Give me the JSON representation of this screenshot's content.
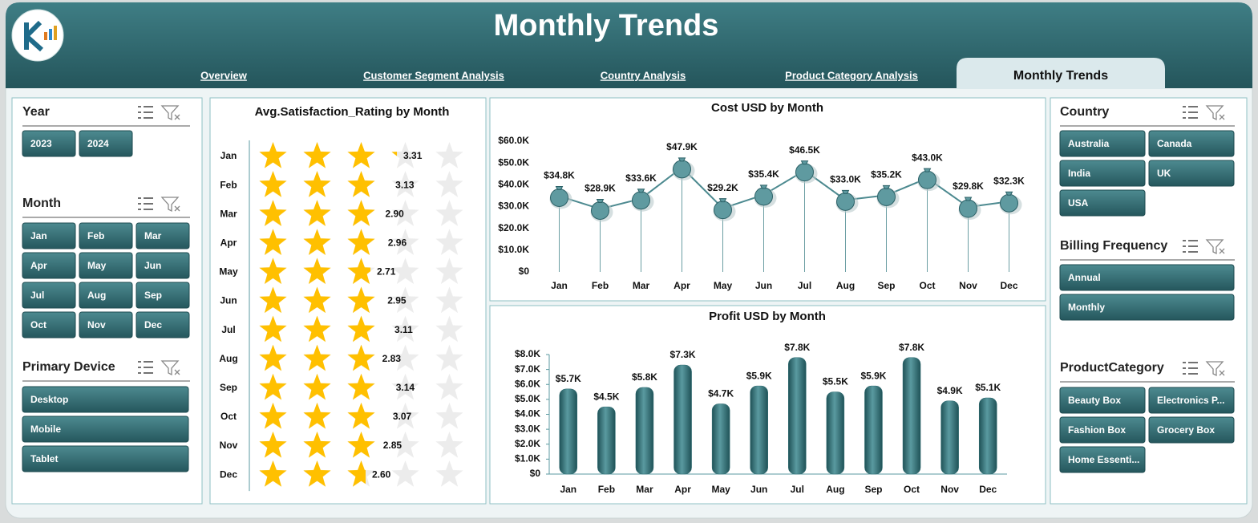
{
  "header": {
    "title": "Monthly Trends"
  },
  "tabs": [
    {
      "label": "Overview",
      "active": false
    },
    {
      "label": "Customer Segment Analysis",
      "active": false
    },
    {
      "label": "Country Analysis",
      "active": false
    },
    {
      "label": "Product Category Analysis",
      "active": false
    },
    {
      "label": "Monthly Trends",
      "active": true
    }
  ],
  "slicers": [
    {
      "title": "Year",
      "items": [
        "2023",
        "2024"
      ]
    },
    {
      "title": "Month",
      "items": [
        "Jan",
        "Feb",
        "Mar",
        "Apr",
        "May",
        "Jun",
        "Jul",
        "Aug",
        "Sep",
        "Oct",
        "Nov",
        "Dec"
      ]
    },
    {
      "title": "Primary Device",
      "items": [
        "Desktop",
        "Mobile",
        "Tablet"
      ]
    },
    {
      "title": "Country",
      "items": [
        "Australia",
        "Canada",
        "India",
        "UK",
        "USA"
      ]
    },
    {
      "title": "Billing Frequency",
      "items": [
        "Annual",
        "Monthly"
      ]
    },
    {
      "title": "ProductCategory",
      "items": [
        "Beauty Box",
        "Electronics P...",
        "Fashion Box",
        "Grocery Box",
        "Home Essenti..."
      ]
    }
  ],
  "chart_data": [
    {
      "type": "rating",
      "title": "Avg.Satisfaction_Rating by Month",
      "categories": [
        "Jan",
        "Feb",
        "Mar",
        "Apr",
        "May",
        "Jun",
        "Jul",
        "Aug",
        "Sep",
        "Oct",
        "Nov",
        "Dec"
      ],
      "values": [
        3.31,
        3.13,
        2.9,
        2.96,
        2.71,
        2.95,
        3.11,
        2.83,
        3.14,
        3.07,
        2.85,
        2.6
      ],
      "value_labels": [
        "3.31",
        "3.13",
        "2.90",
        "2.96",
        "2.71",
        "2.95",
        "3.11",
        "2.83",
        "3.14",
        "3.07",
        "2.85",
        "2.60"
      ],
      "xlim": [
        0,
        5
      ],
      "color": "#ffc000"
    },
    {
      "type": "line",
      "title": "Cost USD by Month",
      "categories": [
        "Jan",
        "Feb",
        "Mar",
        "Apr",
        "May",
        "Jun",
        "Jul",
        "Aug",
        "Sep",
        "Oct",
        "Nov",
        "Dec"
      ],
      "values": [
        34800,
        28900,
        33600,
        47900,
        29200,
        35400,
        46500,
        33000,
        35200,
        43000,
        29800,
        32300
      ],
      "value_labels": [
        "$34.8K",
        "$28.9K",
        "$33.6K",
        "$47.9K",
        "$29.2K",
        "$35.4K",
        "$46.5K",
        "$33.0K",
        "$35.2K",
        "$43.0K",
        "$29.8K",
        "$32.3K"
      ],
      "ylim": [
        0,
        60000
      ],
      "yticks": [
        {
          "value": 0,
          "label": "$0"
        },
        {
          "value": 10000,
          "label": "$10.0K"
        },
        {
          "value": 20000,
          "label": "$20.0K"
        },
        {
          "value": 30000,
          "label": "$30.0K"
        },
        {
          "value": 40000,
          "label": "$40.0K"
        },
        {
          "value": 50000,
          "label": "$50.0K"
        },
        {
          "value": 60000,
          "label": "$60.0K"
        }
      ],
      "color": "#4d8a90"
    },
    {
      "type": "bar",
      "title": "Profit USD by Month",
      "categories": [
        "Jan",
        "Feb",
        "Mar",
        "Apr",
        "May",
        "Jun",
        "Jul",
        "Aug",
        "Sep",
        "Oct",
        "Nov",
        "Dec"
      ],
      "values": [
        5700,
        4500,
        5800,
        7300,
        4700,
        5900,
        7800,
        5500,
        5900,
        7800,
        4900,
        5100
      ],
      "value_labels": [
        "$5.7K",
        "$4.5K",
        "$5.8K",
        "$7.3K",
        "$4.7K",
        "$5.9K",
        "$7.8K",
        "$5.5K",
        "$5.9K",
        "$7.8K",
        "$4.9K",
        "$5.1K"
      ],
      "ylim": [
        0,
        8000
      ],
      "yticks": [
        {
          "value": 0,
          "label": "$0"
        },
        {
          "value": 1000,
          "label": "$1.0K"
        },
        {
          "value": 2000,
          "label": "$2.0K"
        },
        {
          "value": 3000,
          "label": "$3.0K"
        },
        {
          "value": 4000,
          "label": "$4.0K"
        },
        {
          "value": 5000,
          "label": "$5.0K"
        },
        {
          "value": 6000,
          "label": "$6.0K"
        },
        {
          "value": 7000,
          "label": "$7.0K"
        },
        {
          "value": 8000,
          "label": "$8.0K"
        }
      ],
      "color": "#2e6c72"
    }
  ]
}
